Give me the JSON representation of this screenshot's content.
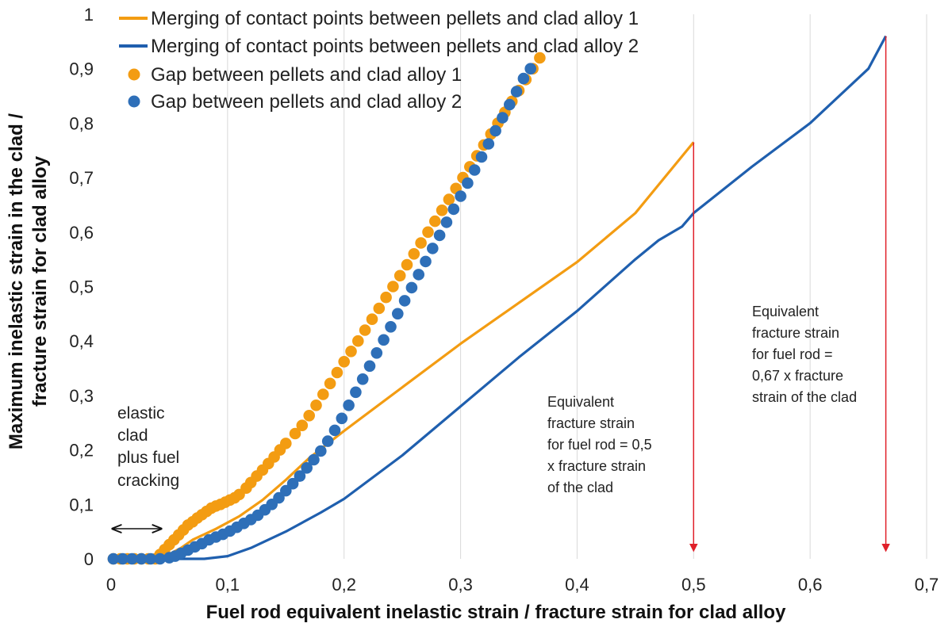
{
  "chart_data": {
    "type": "line",
    "xlabel": "Fuel rod equivalent inelastic strain / fracture strain for clad alloy",
    "ylabel_line1": "Maximum inelastic strain in the clad  /",
    "ylabel_line2": "fracture strain for clad alloy",
    "xlim": [
      0,
      0.7
    ],
    "ylim": [
      0,
      1
    ],
    "x_ticks": [
      "0",
      "0,1",
      "0,2",
      "0,3",
      "0,4",
      "0,5",
      "0,6",
      "0,7"
    ],
    "y_ticks": [
      "0",
      "0,1",
      "0,2",
      "0,3",
      "0,4",
      "0,5",
      "0,6",
      "0,7",
      "0,8",
      "0,9",
      "1"
    ],
    "x_tick_values": [
      0,
      0.1,
      0.2,
      0.3,
      0.4,
      0.5,
      0.6,
      0.7
    ],
    "y_tick_values": [
      0,
      0.1,
      0.2,
      0.3,
      0.4,
      0.5,
      0.6,
      0.7,
      0.8,
      0.9,
      1.0
    ],
    "grid": "vertical",
    "legend_position": "top-left",
    "series": [
      {
        "name": "Merging of contact points between pellets and clad alloy 1",
        "kind": "line",
        "color": "#f39c12",
        "points": [
          [
            0,
            0
          ],
          [
            0.04,
            0
          ],
          [
            0.045,
            0.003
          ],
          [
            0.06,
            0.02
          ],
          [
            0.07,
            0.035
          ],
          [
            0.09,
            0.055
          ],
          [
            0.11,
            0.078
          ],
          [
            0.13,
            0.108
          ],
          [
            0.15,
            0.145
          ],
          [
            0.17,
            0.185
          ],
          [
            0.2,
            0.235
          ],
          [
            0.25,
            0.315
          ],
          [
            0.3,
            0.395
          ],
          [
            0.35,
            0.47
          ],
          [
            0.4,
            0.545
          ],
          [
            0.45,
            0.635
          ],
          [
            0.5,
            0.765
          ]
        ]
      },
      {
        "name": "Merging of contact points between pellets and clad alloy 2",
        "kind": "line",
        "color": "#1f5fae",
        "points": [
          [
            0,
            0
          ],
          [
            0.08,
            0
          ],
          [
            0.1,
            0.005
          ],
          [
            0.12,
            0.02
          ],
          [
            0.15,
            0.05
          ],
          [
            0.18,
            0.085
          ],
          [
            0.2,
            0.11
          ],
          [
            0.25,
            0.19
          ],
          [
            0.3,
            0.28
          ],
          [
            0.35,
            0.37
          ],
          [
            0.4,
            0.455
          ],
          [
            0.45,
            0.55
          ],
          [
            0.47,
            0.585
          ],
          [
            0.49,
            0.61
          ],
          [
            0.5,
            0.635
          ],
          [
            0.55,
            0.72
          ],
          [
            0.6,
            0.8
          ],
          [
            0.65,
            0.9
          ],
          [
            0.665,
            0.96
          ]
        ]
      },
      {
        "name": "Gap between pellets and clad alloy 1",
        "kind": "scatter",
        "color": "#f39c12",
        "points": [
          [
            0.002,
            0
          ],
          [
            0.008,
            0
          ],
          [
            0.014,
            0
          ],
          [
            0.02,
            0
          ],
          [
            0.026,
            0
          ],
          [
            0.032,
            0
          ],
          [
            0.038,
            0
          ],
          [
            0.042,
            0.008
          ],
          [
            0.046,
            0.017
          ],
          [
            0.05,
            0.026
          ],
          [
            0.054,
            0.035
          ],
          [
            0.058,
            0.044
          ],
          [
            0.062,
            0.053
          ],
          [
            0.066,
            0.062
          ],
          [
            0.07,
            0.068
          ],
          [
            0.074,
            0.075
          ],
          [
            0.078,
            0.081
          ],
          [
            0.082,
            0.087
          ],
          [
            0.086,
            0.093
          ],
          [
            0.09,
            0.097
          ],
          [
            0.094,
            0.1
          ],
          [
            0.098,
            0.104
          ],
          [
            0.102,
            0.108
          ],
          [
            0.106,
            0.112
          ],
          [
            0.11,
            0.118
          ],
          [
            0.116,
            0.13
          ],
          [
            0.12,
            0.14
          ],
          [
            0.125,
            0.152
          ],
          [
            0.13,
            0.163
          ],
          [
            0.135,
            0.175
          ],
          [
            0.14,
            0.187
          ],
          [
            0.145,
            0.2
          ],
          [
            0.15,
            0.212
          ],
          [
            0.158,
            0.23
          ],
          [
            0.164,
            0.245
          ],
          [
            0.17,
            0.263
          ],
          [
            0.176,
            0.282
          ],
          [
            0.182,
            0.302
          ],
          [
            0.188,
            0.322
          ],
          [
            0.194,
            0.342
          ],
          [
            0.2,
            0.362
          ],
          [
            0.206,
            0.381
          ],
          [
            0.212,
            0.4
          ],
          [
            0.218,
            0.42
          ],
          [
            0.224,
            0.44
          ],
          [
            0.23,
            0.46
          ],
          [
            0.236,
            0.48
          ],
          [
            0.242,
            0.5
          ],
          [
            0.248,
            0.52
          ],
          [
            0.254,
            0.54
          ],
          [
            0.26,
            0.56
          ],
          [
            0.266,
            0.58
          ],
          [
            0.272,
            0.6
          ],
          [
            0.278,
            0.62
          ],
          [
            0.284,
            0.64
          ],
          [
            0.29,
            0.66
          ],
          [
            0.296,
            0.68
          ],
          [
            0.302,
            0.7
          ],
          [
            0.308,
            0.72
          ],
          [
            0.314,
            0.74
          ],
          [
            0.32,
            0.76
          ],
          [
            0.326,
            0.78
          ],
          [
            0.332,
            0.8
          ],
          [
            0.338,
            0.82
          ],
          [
            0.344,
            0.84
          ],
          [
            0.35,
            0.86
          ],
          [
            0.356,
            0.88
          ],
          [
            0.362,
            0.9
          ],
          [
            0.368,
            0.92
          ]
        ]
      },
      {
        "name": "Gap between pellets and clad alloy 2",
        "kind": "scatter",
        "color": "#2e6fb8",
        "points": [
          [
            0.002,
            0
          ],
          [
            0.01,
            0
          ],
          [
            0.018,
            0
          ],
          [
            0.026,
            0
          ],
          [
            0.034,
            0
          ],
          [
            0.042,
            0
          ],
          [
            0.05,
            0.002
          ],
          [
            0.055,
            0.005
          ],
          [
            0.06,
            0.01
          ],
          [
            0.066,
            0.016
          ],
          [
            0.072,
            0.022
          ],
          [
            0.078,
            0.028
          ],
          [
            0.084,
            0.035
          ],
          [
            0.09,
            0.04
          ],
          [
            0.096,
            0.045
          ],
          [
            0.102,
            0.051
          ],
          [
            0.108,
            0.058
          ],
          [
            0.114,
            0.065
          ],
          [
            0.12,
            0.072
          ],
          [
            0.126,
            0.08
          ],
          [
            0.132,
            0.09
          ],
          [
            0.138,
            0.1
          ],
          [
            0.144,
            0.112
          ],
          [
            0.15,
            0.125
          ],
          [
            0.156,
            0.138
          ],
          [
            0.162,
            0.152
          ],
          [
            0.168,
            0.167
          ],
          [
            0.174,
            0.182
          ],
          [
            0.18,
            0.198
          ],
          [
            0.186,
            0.216
          ],
          [
            0.192,
            0.236
          ],
          [
            0.198,
            0.258
          ],
          [
            0.204,
            0.282
          ],
          [
            0.21,
            0.306
          ],
          [
            0.216,
            0.33
          ],
          [
            0.222,
            0.354
          ],
          [
            0.228,
            0.378
          ],
          [
            0.234,
            0.402
          ],
          [
            0.24,
            0.426
          ],
          [
            0.246,
            0.45
          ],
          [
            0.252,
            0.474
          ],
          [
            0.258,
            0.498
          ],
          [
            0.264,
            0.522
          ],
          [
            0.27,
            0.546
          ],
          [
            0.276,
            0.57
          ],
          [
            0.282,
            0.594
          ],
          [
            0.288,
            0.618
          ],
          [
            0.294,
            0.642
          ],
          [
            0.3,
            0.666
          ],
          [
            0.306,
            0.69
          ],
          [
            0.312,
            0.714
          ],
          [
            0.318,
            0.738
          ],
          [
            0.324,
            0.762
          ],
          [
            0.33,
            0.786
          ],
          [
            0.336,
            0.81
          ],
          [
            0.342,
            0.834
          ],
          [
            0.348,
            0.858
          ],
          [
            0.354,
            0.882
          ],
          [
            0.36,
            0.9
          ]
        ]
      }
    ],
    "annotations": {
      "elastic_lines": [
        "elastic",
        "clad",
        "plus fuel",
        "cracking"
      ],
      "elastic_range": [
        0,
        0.043
      ],
      "fr05_lines": [
        "Equivalent",
        "fracture strain",
        "for fuel rod = 0,5",
        "x fracture strain",
        "of the clad"
      ],
      "fr067_lines": [
        "Equivalent",
        "fracture strain",
        "for fuel rod =",
        "0,67 x fracture",
        "strain of the clad"
      ],
      "arrow_color": "#e0202a",
      "arrows": [
        {
          "x": 0.5,
          "y_from": 0.765,
          "y_to": 0.02
        },
        {
          "x": 0.665,
          "y_from": 0.96,
          "y_to": 0.02
        }
      ]
    }
  }
}
